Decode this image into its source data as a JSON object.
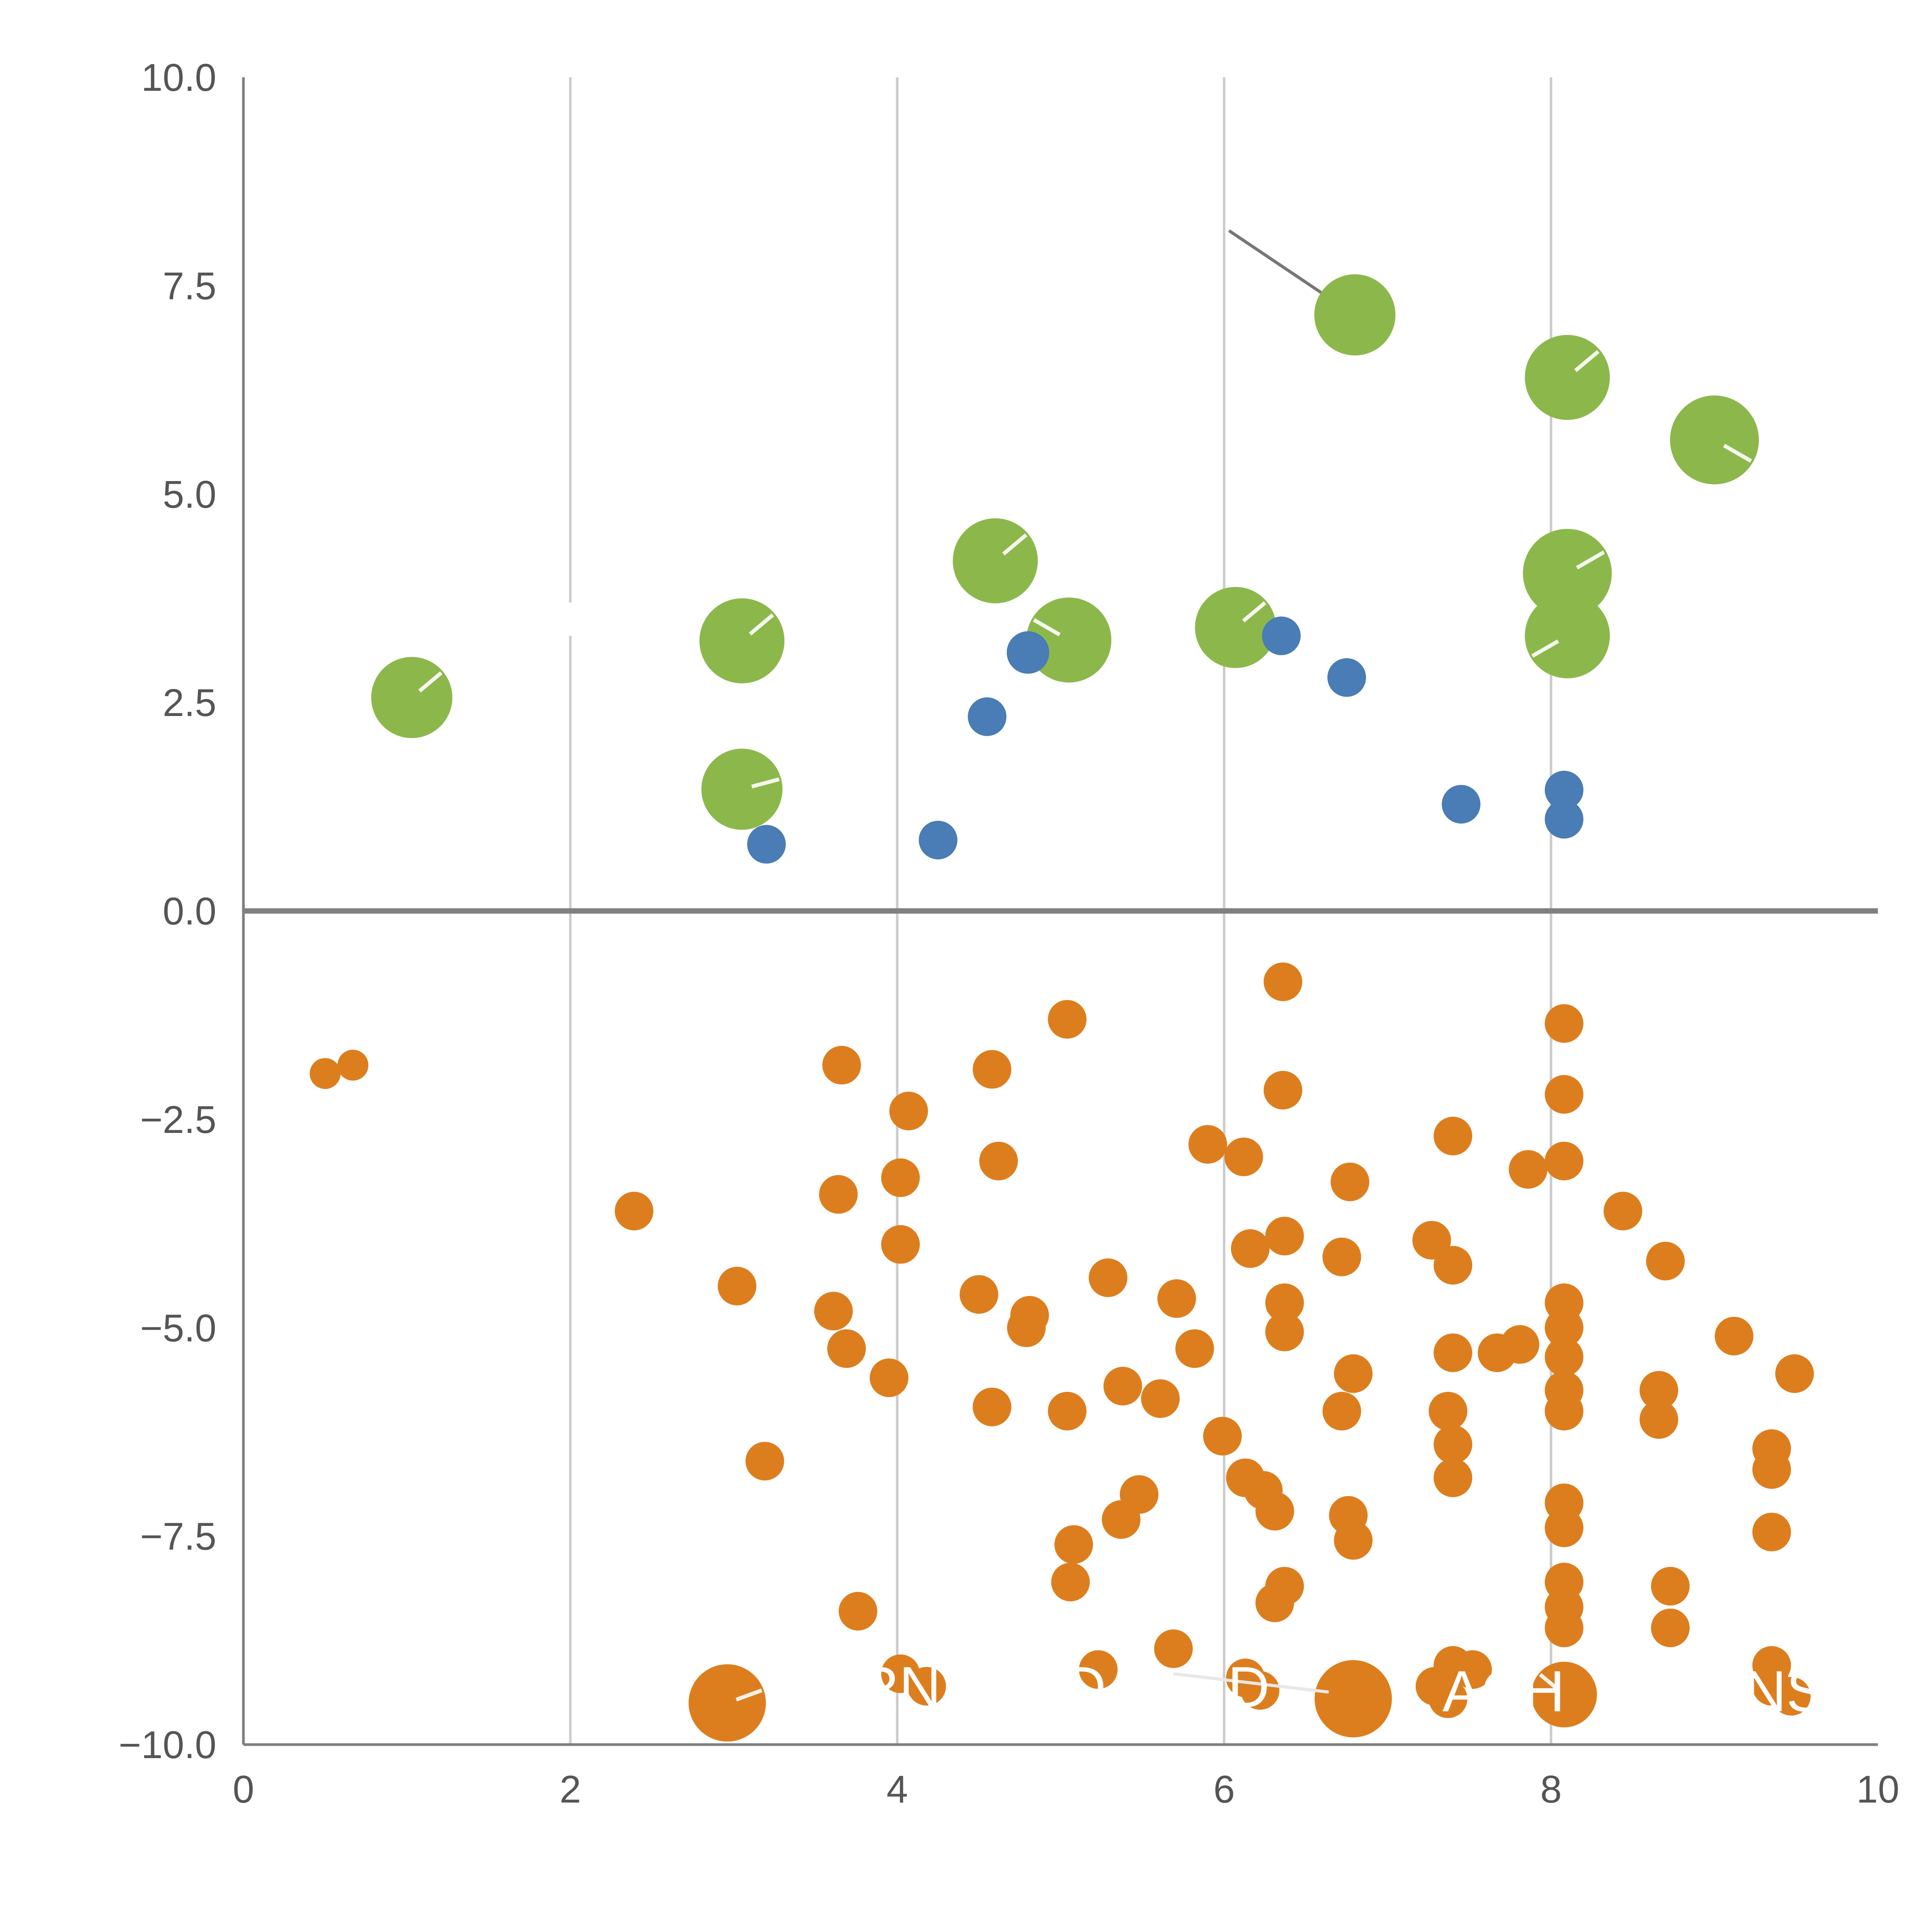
{
  "chart_data": {
    "type": "scatter",
    "title": "",
    "xlabel": "",
    "ylabel": "",
    "xlim": [
      0,
      10
    ],
    "ylim": [
      -10,
      10
    ],
    "x_ticks": [
      0,
      2,
      4,
      6,
      8,
      10
    ],
    "x_tick_labels": [
      "0",
      "2",
      "4",
      "6",
      "8",
      "10"
    ],
    "y_ticks": [
      10.0,
      7.5,
      5.0,
      2.5,
      0.0,
      -2.5,
      -5.0,
      -7.5,
      -10.0
    ],
    "y_tick_labels": [
      "10.0",
      "7.5",
      "5.0",
      "2.5",
      "0.0",
      "−2.5",
      "−5.0",
      "−7.5",
      "−10.0"
    ],
    "grid": "vertical-only",
    "gridline_x": [
      2,
      4,
      6,
      8
    ],
    "gridline_color": "#cccccc",
    "zero_line": {
      "y": 0,
      "color": "#808080",
      "width": 2.8
    },
    "spine_color": "#808080",
    "legend": "none",
    "point_format": "x, y, radius(optional), white_tick_angle_deg(optional)",
    "series": [
      {
        "name": "green-bubbles",
        "color": "#8cb84b",
        "points": [
          [
            1.03,
            2.56,
            21,
            -40
          ],
          [
            3.05,
            3.24,
            22,
            -40
          ],
          [
            3.05,
            1.46,
            21,
            -15
          ],
          [
            4.6,
            4.2,
            22,
            -40
          ],
          [
            5.05,
            3.25,
            22,
            -150
          ],
          [
            6.07,
            3.4,
            21,
            -40
          ],
          [
            6.8,
            7.15,
            21,
            null
          ],
          [
            8.1,
            6.4,
            22,
            -40
          ],
          [
            8.1,
            4.05,
            23,
            -30
          ],
          [
            8.1,
            3.3,
            22,
            150
          ],
          [
            9.0,
            5.65,
            23,
            30
          ]
        ]
      },
      {
        "name": "blue-dots",
        "color": "#4a7cb5",
        "points": [
          [
            3.2,
            0.8,
            10,
            null
          ],
          [
            4.25,
            0.85,
            10,
            null
          ],
          [
            4.55,
            2.33,
            10,
            null
          ],
          [
            4.8,
            3.1,
            11,
            null
          ],
          [
            6.35,
            3.3,
            10,
            null
          ],
          [
            6.75,
            2.8,
            10,
            null
          ],
          [
            7.45,
            1.28,
            10,
            null
          ],
          [
            8.08,
            1.45,
            10,
            null
          ],
          [
            8.08,
            1.1,
            10,
            null
          ]
        ]
      },
      {
        "name": "orange-dots",
        "color": "#dd7e1e",
        "points": [
          [
            0.5,
            -1.95,
            8,
            null
          ],
          [
            0.67,
            -1.85,
            8,
            null
          ],
          [
            3.66,
            -1.85
          ],
          [
            4.58,
            -1.9
          ],
          [
            5.04,
            -1.3
          ],
          [
            6.36,
            -0.85
          ],
          [
            8.08,
            -1.35
          ],
          [
            6.36,
            -2.15
          ],
          [
            8.08,
            -2.2
          ],
          [
            4.07,
            -2.4
          ],
          [
            5.9,
            -2.8
          ],
          [
            7.4,
            -2.7
          ],
          [
            4.62,
            -3.0
          ],
          [
            6.12,
            -2.95
          ],
          [
            7.86,
            -3.1
          ],
          [
            8.08,
            -3.0
          ],
          [
            4.02,
            -3.2
          ],
          [
            6.77,
            -3.25
          ],
          [
            3.64,
            -3.4
          ],
          [
            8.44,
            -3.6
          ],
          [
            2.39,
            -3.6
          ],
          [
            4.02,
            -4.0
          ],
          [
            6.16,
            -4.05
          ],
          [
            6.37,
            -3.9
          ],
          [
            7.27,
            -3.95
          ],
          [
            6.72,
            -4.15
          ],
          [
            7.4,
            -4.25
          ],
          [
            3.02,
            -4.5
          ],
          [
            5.29,
            -4.4
          ],
          [
            4.5,
            -4.6
          ],
          [
            8.7,
            -4.2
          ],
          [
            5.71,
            -4.65
          ],
          [
            3.61,
            -4.8
          ],
          [
            4.81,
            -4.85
          ],
          [
            6.37,
            -4.7
          ],
          [
            8.08,
            -4.7
          ],
          [
            8.08,
            -5.0
          ],
          [
            9.12,
            -5.1
          ],
          [
            4.79,
            -5.0
          ],
          [
            5.82,
            -5.25
          ],
          [
            6.37,
            -5.05
          ],
          [
            3.69,
            -5.25
          ],
          [
            7.4,
            -5.3
          ],
          [
            7.67,
            -5.3
          ],
          [
            7.81,
            -5.2
          ],
          [
            8.08,
            -5.35
          ],
          [
            3.95,
            -5.6
          ],
          [
            6.79,
            -5.55
          ],
          [
            9.49,
            -5.55
          ],
          [
            5.38,
            -5.7
          ],
          [
            8.08,
            -5.75
          ],
          [
            8.66,
            -5.75
          ],
          [
            4.58,
            -5.95
          ],
          [
            5.04,
            -6.0
          ],
          [
            5.61,
            -5.85
          ],
          [
            6.72,
            -6.0
          ],
          [
            7.37,
            -6.0
          ],
          [
            8.08,
            -6.0
          ],
          [
            8.66,
            -6.1
          ],
          [
            7.4,
            -6.4
          ],
          [
            5.99,
            -6.3
          ],
          [
            3.19,
            -6.6
          ],
          [
            9.35,
            -6.45
          ],
          [
            9.35,
            -6.7
          ],
          [
            7.4,
            -6.8
          ],
          [
            6.13,
            -6.8
          ],
          [
            6.24,
            -6.95
          ],
          [
            5.48,
            -7.0
          ],
          [
            5.37,
            -7.3
          ],
          [
            6.31,
            -7.2
          ],
          [
            6.76,
            -7.25
          ],
          [
            8.08,
            -7.1
          ],
          [
            8.08,
            -7.4
          ],
          [
            5.08,
            -7.6
          ],
          [
            6.79,
            -7.55
          ],
          [
            9.35,
            -7.45
          ],
          [
            5.06,
            -8.05
          ],
          [
            6.37,
            -8.1
          ],
          [
            6.31,
            -8.3
          ],
          [
            8.08,
            -8.05
          ],
          [
            8.08,
            -8.35
          ],
          [
            8.73,
            -8.1
          ],
          [
            3.76,
            -8.4
          ],
          [
            8.73,
            -8.6
          ],
          [
            8.08,
            -8.6
          ],
          [
            5.69,
            -8.85
          ],
          [
            5.23,
            -9.1
          ],
          [
            7.4,
            -9.05
          ],
          [
            7.52,
            -9.1
          ],
          [
            9.35,
            -9.05
          ],
          [
            2.96,
            -9.5,
            20,
            -20
          ],
          [
            4.02,
            -9.15
          ],
          [
            4.18,
            -9.3
          ],
          [
            6.13,
            -9.2
          ],
          [
            6.22,
            -9.35
          ],
          [
            6.79,
            -9.45,
            20,
            null
          ],
          [
            7.29,
            -9.3
          ],
          [
            7.37,
            -9.45
          ],
          [
            8.08,
            -9.4,
            17,
            -140
          ],
          [
            9.35,
            -9.3
          ],
          [
            9.47,
            -9.42
          ]
        ]
      }
    ],
    "annotation_line": {
      "x1": 6.03,
      "y1": 8.16,
      "x2": 6.66,
      "y2": 7.33,
      "color": "#777777",
      "width": 1.6
    },
    "white_segments": [
      {
        "x1": 2.0,
        "y1": 3.7,
        "x2": 2.0,
        "y2": 3.3,
        "color": "#ffffff",
        "width": 2.5
      },
      {
        "x1": 6.03,
        "y1": 1.88,
        "x2": 6.15,
        "y2": 1.8,
        "color": "#ffffff",
        "width": 2.0
      },
      {
        "x1": 5.69,
        "y1": -9.15,
        "x2": 6.64,
        "y2": -9.37,
        "color": "#e8e8e8",
        "width": 1.6
      }
    ],
    "white_text_fragments": [
      {
        "text": "RNT",
        "x": 4.12,
        "y": -9.55
      },
      {
        "text": "D",
        "x": 5.15,
        "y": -9.55
      },
      {
        "text": "D",
        "x": 6.15,
        "y": -9.55
      },
      {
        "text": "ACH",
        "x": 7.71,
        "y": -9.6
      },
      {
        "text": "NS",
        "x": 9.43,
        "y": -9.6
      }
    ],
    "tick_label_font_size": 20,
    "fragment_font_size": 30
  }
}
